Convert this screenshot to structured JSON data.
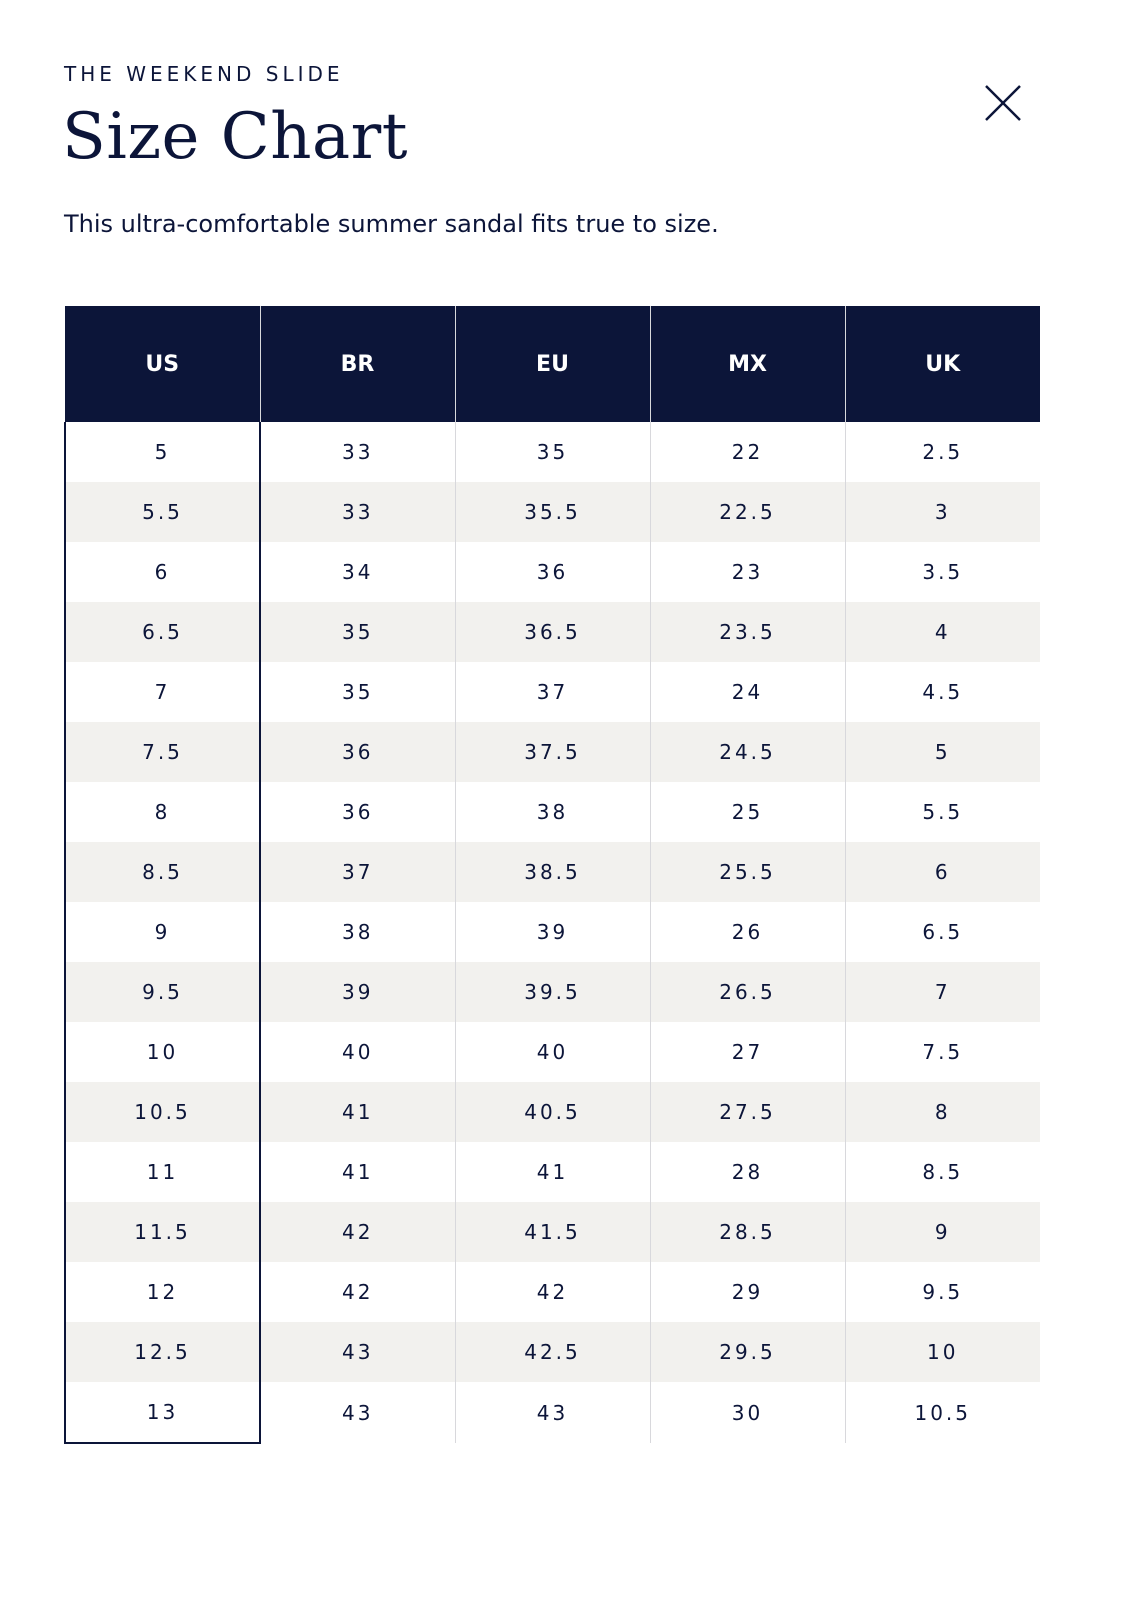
{
  "header": {
    "eyebrow": "THE WEEKEND SLIDE",
    "title": "Size Chart",
    "description": "This ultra-comfortable summer sandal fits true to size."
  },
  "table": {
    "columns": [
      "US",
      "BR",
      "EU",
      "MX",
      "UK"
    ],
    "rows": [
      [
        "5",
        "33",
        "35",
        "22",
        "2.5"
      ],
      [
        "5.5",
        "33",
        "35.5",
        "22.5",
        "3"
      ],
      [
        "6",
        "34",
        "36",
        "23",
        "3.5"
      ],
      [
        "6.5",
        "35",
        "36.5",
        "23.5",
        "4"
      ],
      [
        "7",
        "35",
        "37",
        "24",
        "4.5"
      ],
      [
        "7.5",
        "36",
        "37.5",
        "24.5",
        "5"
      ],
      [
        "8",
        "36",
        "38",
        "25",
        "5.5"
      ],
      [
        "8.5",
        "37",
        "38.5",
        "25.5",
        "6"
      ],
      [
        "9",
        "38",
        "39",
        "26",
        "6.5"
      ],
      [
        "9.5",
        "39",
        "39.5",
        "26.5",
        "7"
      ],
      [
        "10",
        "40",
        "40",
        "27",
        "7.5"
      ],
      [
        "10.5",
        "41",
        "40.5",
        "27.5",
        "8"
      ],
      [
        "11",
        "41",
        "41",
        "28",
        "8.5"
      ],
      [
        "11.5",
        "42",
        "41.5",
        "28.5",
        "9"
      ],
      [
        "12",
        "42",
        "42",
        "29",
        "9.5"
      ],
      [
        "12.5",
        "43",
        "42.5",
        "29.5",
        "10"
      ],
      [
        "13",
        "43",
        "43",
        "30",
        "10.5"
      ]
    ]
  }
}
